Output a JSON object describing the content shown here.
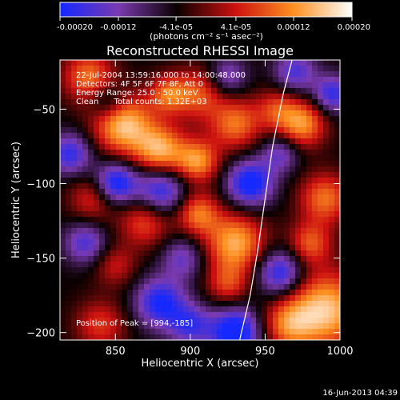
{
  "chart_data": {
    "type": "heatmap",
    "title": "Reconstructed RHESSI Image",
    "xlabel": "Heliocentric X (arcsec)",
    "ylabel": "Heliocentric Y (arcsec)",
    "xlim": [
      813,
      1000
    ],
    "ylim": [
      -205,
      -17
    ],
    "xticks": [
      850,
      900,
      950,
      1000
    ],
    "yticks": [
      -50,
      -100,
      -150,
      -200
    ],
    "colorbar": {
      "label": "(photons cm⁻² s⁻¹ asec⁻²)",
      "range": [
        -0.0002,
        0.0002
      ],
      "ticks": [
        "-0.00020",
        "-0.00012",
        "-4.1e-05",
        "4.1e-05",
        "0.00012",
        "0.00020"
      ],
      "tick_values": [
        -0.0002,
        -0.00012,
        -4.1e-05,
        4.1e-05,
        0.00012,
        0.0002
      ],
      "colors": [
        "#1428ff",
        "#7a3ab0",
        "#0a0000",
        "#cc1010",
        "#ff9020",
        "#ffffff"
      ]
    },
    "info_lines": [
      "22-Jul-2004 13:59:16.000 to 14:00:48.000",
      "Detectors: 4F 5F 6F 7F 8F, Att 0",
      "Energy Range: 25.0 - 50.0 keV",
      "Clean      Total counts: 1.32E+03"
    ],
    "peak_text": "Position of Peak = [994,-185]",
    "peak": [
      994,
      -185
    ],
    "limb_curve": [
      [
        933,
        -205
      ],
      [
        940,
        -175
      ],
      [
        945,
        -145
      ],
      [
        950,
        -110
      ],
      [
        955,
        -75
      ],
      [
        962,
        -40
      ],
      [
        968,
        -17
      ]
    ],
    "blobs": [
      [
        832,
        -28,
        12,
        0.00014
      ],
      [
        855,
        -60,
        14,
        0.0002
      ],
      [
        880,
        -78,
        12,
        0.00018
      ],
      [
        905,
        -85,
        10,
        0.00016
      ],
      [
        905,
        -40,
        12,
        0.00012
      ],
      [
        930,
        -60,
        12,
        0.00014
      ],
      [
        958,
        -50,
        10,
        0.0001
      ],
      [
        975,
        -60,
        11,
        0.00016
      ],
      [
        990,
        -110,
        12,
        0.00014
      ],
      [
        980,
        -140,
        10,
        0.00012
      ],
      [
        930,
        -140,
        14,
        0.00018
      ],
      [
        905,
        -120,
        10,
        0.00014
      ],
      [
        870,
        -125,
        12,
        0.00012
      ],
      [
        835,
        -110,
        11,
        0.0001
      ],
      [
        850,
        -155,
        10,
        8e-05
      ],
      [
        990,
        -185,
        18,
        0.0002
      ],
      [
        965,
        -195,
        12,
        0.00012
      ],
      [
        840,
        -195,
        12,
        0.0001
      ],
      [
        925,
        -168,
        10,
        0.0001
      ],
      [
        885,
        -40,
        9,
        0.00012
      ],
      [
        850,
        -100,
        10,
        -0.00018
      ],
      [
        820,
        -80,
        10,
        -0.00014
      ],
      [
        880,
        -105,
        12,
        -0.00016
      ],
      [
        940,
        -100,
        11,
        -0.00018
      ],
      [
        960,
        -80,
        9,
        -0.0001
      ],
      [
        930,
        -200,
        12,
        -0.0002
      ],
      [
        880,
        -180,
        12,
        -0.00016
      ],
      [
        830,
        -140,
        10,
        -0.00012
      ],
      [
        895,
        -150,
        10,
        -0.0001
      ],
      [
        960,
        -160,
        11,
        -0.00016
      ],
      [
        970,
        -25,
        10,
        -0.00012
      ],
      [
        845,
        -45,
        9,
        -0.0001
      ],
      [
        995,
        -40,
        9,
        -0.00014
      ],
      [
        900,
        -195,
        10,
        -0.00012
      ],
      [
        925,
        -28,
        9,
        -0.0001
      ]
    ]
  },
  "footer": {
    "date": "16-Jun-2013 04:39"
  }
}
